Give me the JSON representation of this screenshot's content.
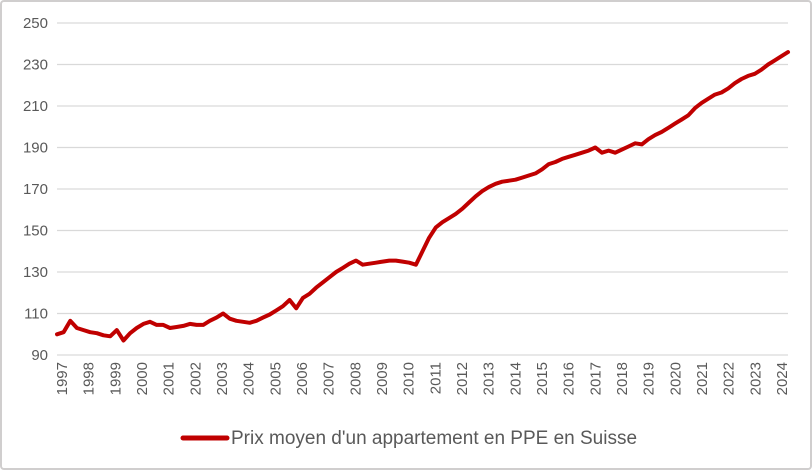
{
  "chart": {
    "legend_label": "Prix moyen d'un appartement en PPE en Suisse",
    "colors": {
      "line": "#c00000",
      "axis_text": "#595959",
      "gridline": "#d9d9d9",
      "border": "#d0cece",
      "background": "#ffffff"
    }
  },
  "chart_data": {
    "type": "line",
    "title": "",
    "xlabel": "",
    "ylabel": "",
    "ylim": [
      90,
      250
    ],
    "y_ticks": [
      90,
      110,
      130,
      150,
      170,
      190,
      210,
      230,
      250
    ],
    "x_tick_labels": [
      "1997",
      "1998",
      "1999",
      "2000",
      "2001",
      "2002",
      "2003",
      "2004",
      "2005",
      "2006",
      "2007",
      "2008",
      "2009",
      "2010",
      "2011",
      "2012",
      "2013",
      "2014",
      "2015",
      "2016",
      "2017",
      "2018",
      "2019",
      "2020",
      "2021",
      "2022",
      "2023",
      "2024"
    ],
    "grid": "horizontal-only",
    "legend_position": "bottom-center",
    "series": [
      {
        "name": "Prix moyen d'un appartement en PPE en Suisse",
        "color": "#c00000",
        "frequency": "quarterly",
        "start": "1997-Q1",
        "end": "2024-Q3",
        "values": [
          100,
          101,
          106.5,
          103,
          102,
          101,
          100.5,
          99.5,
          99,
          102,
          97,
          100.5,
          103,
          105,
          106,
          104.5,
          104.5,
          103,
          103.5,
          104,
          105,
          104.5,
          104.5,
          106.5,
          108,
          110,
          107.5,
          106.5,
          106,
          105.5,
          106.5,
          108,
          109.5,
          111.5,
          113.5,
          116.5,
          112.5,
          117.5,
          119.5,
          122.5,
          125,
          127.5,
          130,
          132,
          134,
          135.5,
          133.5,
          134,
          134.5,
          135,
          135.5,
          135.5,
          135,
          134.5,
          133.5,
          140,
          146.5,
          151.5,
          154,
          156,
          158,
          160.5,
          163.5,
          166.5,
          169,
          171,
          172.5,
          173.5,
          174,
          174.5,
          175.5,
          176.5,
          177.5,
          179.5,
          182,
          183,
          184.5,
          185.5,
          186.5,
          187.5,
          188.5,
          190,
          187.5,
          188.5,
          187.5,
          189,
          190.5,
          192,
          191.5,
          194,
          196,
          197.5,
          199.5,
          201.5,
          203.5,
          205.5,
          209,
          211.5,
          213.5,
          215.5,
          216.5,
          218.5,
          221,
          223,
          224.5,
          225.5,
          227.5,
          230,
          232,
          234,
          236
        ]
      }
    ]
  }
}
